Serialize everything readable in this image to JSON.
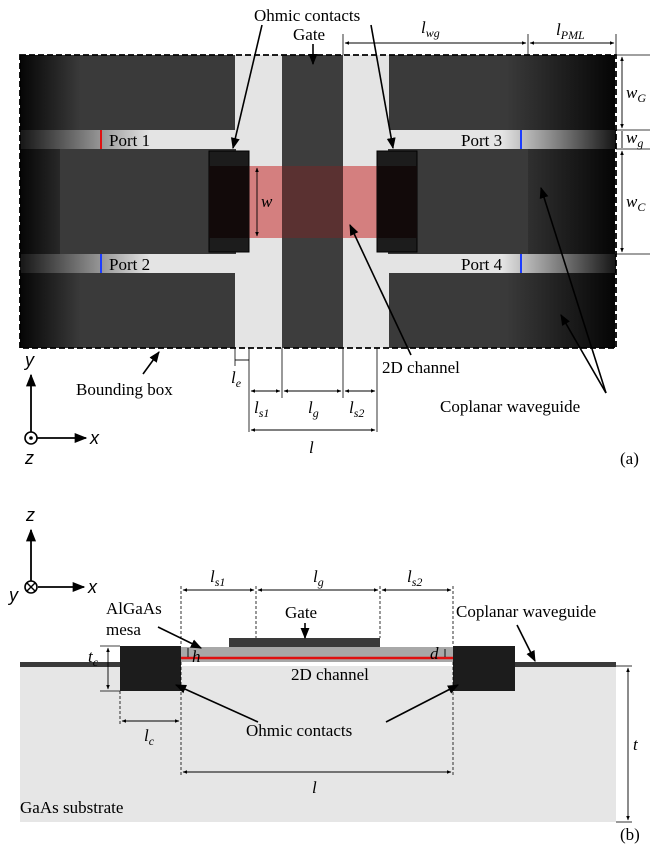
{
  "panel_a": {
    "top_labels": {
      "ohmic": "Ohmic contacts",
      "gate": "Gate"
    },
    "ports": [
      "Port 1",
      "Port 2",
      "Port 3",
      "Port 4"
    ],
    "dims": {
      "l_wg": {
        "main": "l",
        "sub": "wg"
      },
      "l_pml": {
        "main": "l",
        "sub": "PML"
      },
      "w_G": {
        "main": "w",
        "sub": "G"
      },
      "w_g": {
        "main": "w",
        "sub": "g"
      },
      "w_C": {
        "main": "w",
        "sub": "C"
      },
      "w": {
        "main": "w"
      },
      "l_e": {
        "main": "l",
        "sub": "e"
      },
      "l_s1": {
        "main": "l",
        "sub": "s1"
      },
      "l_g": {
        "main": "l",
        "sub": "g"
      },
      "l_s2": {
        "main": "l",
        "sub": "s2"
      },
      "l": {
        "main": "l"
      }
    },
    "labels": {
      "bounding_box": "Bounding box",
      "channel": "2D channel",
      "cpw": "Coplanar waveguide",
      "panel": "(a)"
    },
    "axes": {
      "y": "y",
      "x": "x",
      "z": "z"
    }
  },
  "panel_b": {
    "dims": {
      "l_s1": {
        "main": "l",
        "sub": "s1"
      },
      "l_g": {
        "main": "l",
        "sub": "g"
      },
      "l_s2": {
        "main": "l",
        "sub": "s2"
      },
      "t_c": {
        "main": "t",
        "sub": "c"
      },
      "h": {
        "main": "h"
      },
      "d": {
        "main": "d"
      },
      "l_c": {
        "main": "l",
        "sub": "c"
      },
      "l": {
        "main": "l"
      },
      "t": {
        "main": "t"
      }
    },
    "labels": {
      "mesa_1": "AlGaAs",
      "mesa_2": "mesa",
      "gate": "Gate",
      "cpw": "Coplanar waveguide",
      "channel": "2D channel",
      "ohmic": "Ohmic contacts",
      "substrate": "GaAs substrate",
      "panel": "(b)"
    },
    "axes": {
      "z": "z",
      "x": "x",
      "y": "y"
    }
  },
  "colors": {
    "metal": "#3a3a3a",
    "metal_dark": "#1a1a1a",
    "gap": "#e4e4e4",
    "channel": "#d47f7f",
    "channel_line": "#e01010",
    "port_red": "#e01010",
    "port_blue": "#1c3cff",
    "substrate": "#e6e6e6",
    "mesa": "#a8a8a8"
  }
}
